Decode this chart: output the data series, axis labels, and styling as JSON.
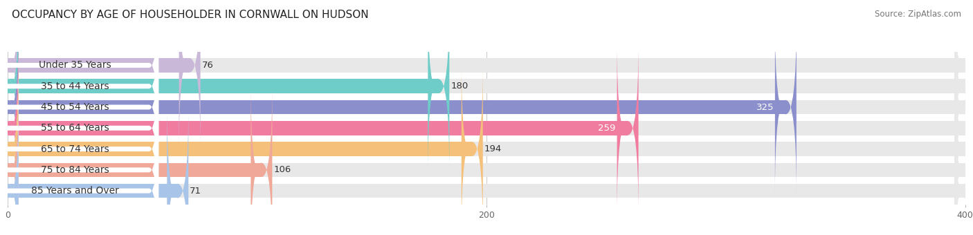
{
  "title": "OCCUPANCY BY AGE OF HOUSEHOLDER IN CORNWALL ON HUDSON",
  "source": "Source: ZipAtlas.com",
  "categories": [
    "Under 35 Years",
    "35 to 44 Years",
    "45 to 54 Years",
    "55 to 64 Years",
    "65 to 74 Years",
    "75 to 84 Years",
    "85 Years and Over"
  ],
  "values": [
    76,
    180,
    325,
    259,
    194,
    106,
    71
  ],
  "bar_colors": [
    "#c9b8d8",
    "#6ecdc8",
    "#8b8fcc",
    "#f07ca0",
    "#f5c07a",
    "#f0a898",
    "#a8c4e8"
  ],
  "bar_bg_color": "#e8e8e8",
  "white_label_bg": "#ffffff",
  "xlim": [
    0,
    400
  ],
  "xticks": [
    0,
    200,
    400
  ],
  "label_fontsize": 10,
  "value_fontsize": 9.5,
  "title_fontsize": 11,
  "bar_height": 0.68,
  "fig_bg_color": "#ffffff",
  "value_color_inside": [
    false,
    false,
    true,
    true,
    false,
    false,
    false
  ],
  "grid_color": "#cccccc",
  "text_color": "#333333",
  "source_color": "#777777"
}
